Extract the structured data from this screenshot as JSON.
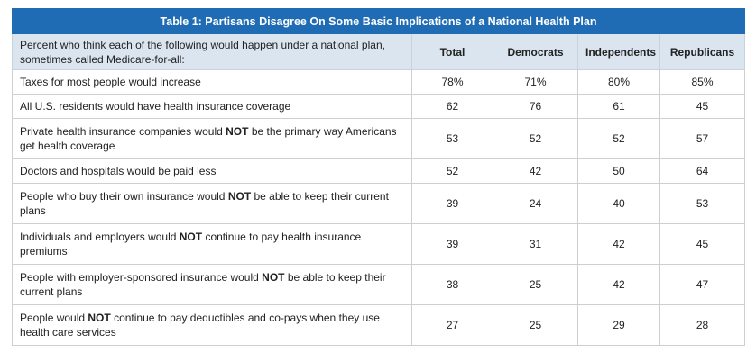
{
  "table": {
    "title": "Table 1: Partisans Disagree On Some Basic Implications of a National Health Plan",
    "question": "Percent who think each of the following would happen under a national plan, sometimes called Medicare-for-all:",
    "columns": [
      "Total",
      "Democrats",
      "Independents",
      "Republicans"
    ],
    "rows": [
      {
        "pre": "Taxes for most people would increase",
        "bold": "",
        "post": "",
        "values": [
          "78%",
          "71%",
          "80%",
          "85%"
        ]
      },
      {
        "pre": "All U.S. residents would have health insurance coverage",
        "bold": "",
        "post": "",
        "values": [
          "62",
          "76",
          "61",
          "45"
        ]
      },
      {
        "pre": "Private health insurance companies would ",
        "bold": "NOT",
        "post": " be the primary way Americans get health coverage",
        "values": [
          "53",
          "52",
          "52",
          "57"
        ]
      },
      {
        "pre": "Doctors and hospitals would be paid less",
        "bold": "",
        "post": "",
        "values": [
          "52",
          "42",
          "50",
          "64"
        ]
      },
      {
        "pre": "People who buy their own insurance would ",
        "bold": "NOT",
        "post": " be able to keep their current plans",
        "values": [
          "39",
          "24",
          "40",
          "53"
        ]
      },
      {
        "pre": "Individuals and employers would ",
        "bold": "NOT",
        "post": " continue to pay health insurance premiums",
        "values": [
          "39",
          "31",
          "42",
          "45"
        ]
      },
      {
        "pre": "People with employer-sponsored insurance would ",
        "bold": "NOT",
        "post": " be able to keep their current plans",
        "values": [
          "38",
          "25",
          "42",
          "47"
        ]
      },
      {
        "pre": "People would ",
        "bold": "NOT",
        "post": " continue to pay deductibles and co-pays when they use health care services",
        "values": [
          "27",
          "25",
          "29",
          "28"
        ]
      }
    ]
  }
}
